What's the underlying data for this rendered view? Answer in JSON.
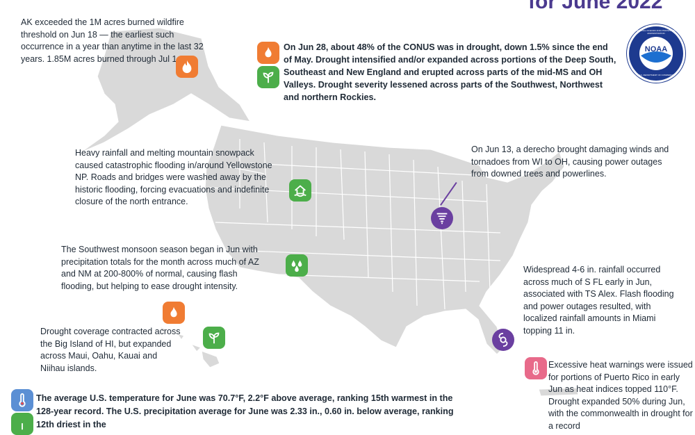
{
  "title": "for June 2022",
  "logo": {
    "text": "NOAA",
    "ring_top": "NATIONAL OCEANIC AND ATMOSPHERIC ADMINISTRATION",
    "ring_bottom": "U.S. DEPARTMENT OF COMMERCE"
  },
  "colors": {
    "land": "#d9d9d9",
    "border": "#ffffff",
    "fire": "#f07c33",
    "drought_better": "#4cae4a",
    "storm": "#6a3fa0",
    "heat": "#e86a8a",
    "temp": "#5b8fd4",
    "title": "#4b3a8f"
  },
  "notes": {
    "alaska": "AK exceeded the 1M acres burned wildfire threshold on Jun 18 — the earliest such occurrence in a year than anytime in the last 32 years. 1.85M acres burned through Jul 1.",
    "drought": "On Jun 28, about 48% of the CONUS was in drought, down 1.5% since the end of May. Drought intensified and/or expanded across portions of the Deep South, Southeast and New England and erupted across parts of the mid-MS and OH Valleys. Drought severity lessened across parts of the Southwest, Northwest and northern Rockies.",
    "yellowstone": "Heavy rainfall and melting mountain snowpack caused catastrophic flooding in/around Yellowstone NP. Roads and bridges were washed away by the historic flooding, forcing evacuations and indefinite closure of the north entrance.",
    "derecho": "On Jun 13, a derecho brought damaging winds and tornadoes from WI to OH, causing power outages from downed trees and powerlines.",
    "monsoon": "The Southwest monsoon season began in Jun with precipitation totals for the month across much of AZ and NM at 200-800% of normal, causing flash flooding, but helping to ease drought intensity.",
    "florida": "Widespread 4-6 in. rainfall occurred across much of S FL early in Jun, associated with TS Alex. Flash flooding and power outages resulted, with localized rainfall amounts in Miami topping 11 in.",
    "hawaii": "Drought coverage contracted across the Big Island of HI, but expanded across Maui, Oahu, Kauai and Niihau islands.",
    "puerto_rico": "Excessive heat warnings were issued for portions of Puerto Rico in early Jun as heat indices topped 110°F. Drought expanded 50% during Jun, with the commonwealth in drought for a record",
    "national": "The average U.S. temperature for June was 70.7°F, 2.2°F above average, ranking 15th warmest in the 128-year record. The U.S. precipitation average for June was 2.33 in., 0.60 in. below average, ranking 12th driest in the"
  },
  "icons": {
    "alaska": "wildfire-icon",
    "drought_worse": "wildfire-icon",
    "drought_better": "plant-icon",
    "yellowstone": "flood-house-icon",
    "derecho": "tornado-icon",
    "monsoon": "raindrops-icon",
    "hawaii_worse": "wildfire-icon",
    "hawaii_better": "plant-icon",
    "florida": "hurricane-icon",
    "puerto_rico": "thermometer-icon",
    "national_temp": "thermometer-icon",
    "national_precip": "plant-icon"
  }
}
